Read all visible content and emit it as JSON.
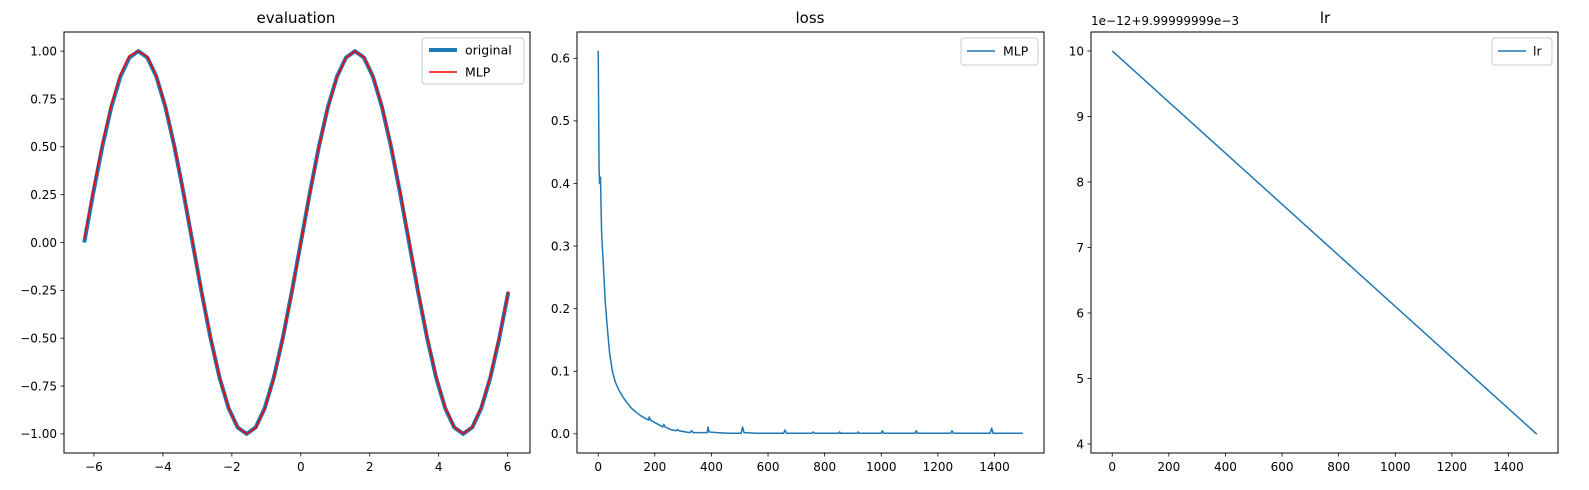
{
  "chart_data": [
    {
      "id": "evaluation",
      "type": "line",
      "title": "evaluation",
      "xlabel": "",
      "ylabel": "",
      "xlim": [
        -6.87,
        6.65
      ],
      "ylim": [
        -1.1,
        1.1
      ],
      "x_ticks": [
        -6,
        -4,
        -2,
        0,
        2,
        4,
        6
      ],
      "x_tick_labels": [
        "−6",
        "−4",
        "−2",
        "0",
        "2",
        "4",
        "6"
      ],
      "y_ticks": [
        -1.0,
        -0.75,
        -0.5,
        -0.25,
        0.0,
        0.25,
        0.5,
        0.75,
        1.0
      ],
      "y_tick_labels": [
        "−1.00",
        "−0.75",
        "−0.50",
        "−0.25",
        "0.00",
        "0.25",
        "0.50",
        "0.75",
        "1.00"
      ],
      "grid": false,
      "legend": "top-right",
      "x_start": -6.283,
      "x_step": 0.2618,
      "n_points": 48,
      "series": [
        {
          "name": "original",
          "color": "#1f77b4",
          "values": [
            0.0,
            0.259,
            0.5,
            0.707,
            0.866,
            0.966,
            1.0,
            0.966,
            0.866,
            0.707,
            0.5,
            0.259,
            0.0,
            -0.259,
            -0.5,
            -0.707,
            -0.866,
            -0.966,
            -1.0,
            -0.966,
            -0.866,
            -0.707,
            -0.5,
            -0.259,
            0.0,
            0.259,
            0.5,
            0.707,
            0.866,
            0.966,
            1.0,
            0.966,
            0.866,
            0.707,
            0.5,
            0.259,
            0.0,
            -0.259,
            -0.5,
            -0.707,
            -0.866,
            -0.966,
            -1.0,
            -0.966,
            -0.866,
            -0.707,
            -0.5,
            -0.259
          ]
        },
        {
          "name": "MLP",
          "color": "#ff0000",
          "values": [
            0.02,
            0.275,
            0.515,
            0.722,
            0.878,
            0.976,
            1.0,
            0.97,
            0.87,
            0.712,
            0.502,
            0.262,
            0.005,
            -0.255,
            -0.496,
            -0.704,
            -0.865,
            -0.966,
            -1.0,
            -0.968,
            -0.87,
            -0.71,
            -0.503,
            -0.262,
            -0.003,
            0.257,
            0.498,
            0.705,
            0.864,
            0.965,
            1.0,
            0.968,
            0.871,
            0.713,
            0.506,
            0.268,
            0.012,
            -0.25,
            -0.492,
            -0.7,
            -0.862,
            -0.964,
            -0.998,
            -0.965,
            -0.862,
            -0.7,
            -0.49,
            -0.255
          ]
        }
      ]
    },
    {
      "id": "loss",
      "type": "line",
      "title": "loss",
      "xlabel": "",
      "ylabel": "",
      "xlim": [
        -75,
        1575
      ],
      "ylim": [
        -0.0306,
        0.642
      ],
      "x_ticks": [
        0,
        200,
        400,
        600,
        800,
        1000,
        1200,
        1400
      ],
      "x_tick_labels": [
        "0",
        "200",
        "400",
        "600",
        "800",
        "1000",
        "1200",
        "1400"
      ],
      "y_ticks": [
        0.0,
        0.1,
        0.2,
        0.3,
        0.4,
        0.5,
        0.6
      ],
      "y_tick_labels": [
        "0.0",
        "0.1",
        "0.2",
        "0.3",
        "0.4",
        "0.5",
        "0.6"
      ],
      "grid": false,
      "legend": "top-right",
      "series": [
        {
          "name": "MLP",
          "color": "#1f77b4",
          "points": [
            [
              0,
              0.612
            ],
            [
              3,
              0.42
            ],
            [
              5,
              0.4
            ],
            [
              8,
              0.41
            ],
            [
              12,
              0.32
            ],
            [
              18,
              0.27
            ],
            [
              25,
              0.21
            ],
            [
              32,
              0.17
            ],
            [
              40,
              0.13
            ],
            [
              50,
              0.1
            ],
            [
              60,
              0.083
            ],
            [
              75,
              0.068
            ],
            [
              90,
              0.057
            ],
            [
              105,
              0.048
            ],
            [
              112,
              0.044
            ],
            [
              115,
              0.042
            ],
            [
              120,
              0.04
            ],
            [
              135,
              0.034
            ],
            [
              150,
              0.029
            ],
            [
              165,
              0.025
            ],
            [
              178,
              0.022
            ],
            [
              180,
              0.027
            ],
            [
              185,
              0.022
            ],
            [
              200,
              0.018
            ],
            [
              220,
              0.013
            ],
            [
              228,
              0.011
            ],
            [
              232,
              0.015
            ],
            [
              236,
              0.011
            ],
            [
              255,
              0.007
            ],
            [
              275,
              0.005
            ],
            [
              280,
              0.007
            ],
            [
              285,
              0.005
            ],
            [
              310,
              0.003
            ],
            [
              325,
              0.002
            ],
            [
              330,
              0.005
            ],
            [
              335,
              0.002
            ],
            [
              360,
              0.002
            ],
            [
              385,
              0.002
            ],
            [
              388,
              0.011
            ],
            [
              392,
              0.003
            ],
            [
              420,
              0.002
            ],
            [
              460,
              0.001
            ],
            [
              505,
              0.001
            ],
            [
              510,
              0.011
            ],
            [
              515,
              0.002
            ],
            [
              560,
              0.001
            ],
            [
              620,
              0.001
            ],
            [
              655,
              0.001
            ],
            [
              660,
              0.006
            ],
            [
              665,
              0.001
            ],
            [
              700,
              0.001
            ],
            [
              755,
              0.001
            ],
            [
              760,
              0.003
            ],
            [
              765,
              0.001
            ],
            [
              800,
              0.001
            ],
            [
              850,
              0.001
            ],
            [
              853,
              0.003
            ],
            [
              856,
              0.001
            ],
            [
              900,
              0.001
            ],
            [
              915,
              0.001
            ],
            [
              918,
              0.003
            ],
            [
              921,
              0.001
            ],
            [
              960,
              0.001
            ],
            [
              1000,
              0.001
            ],
            [
              1004,
              0.005
            ],
            [
              1008,
              0.001
            ],
            [
              1060,
              0.001
            ],
            [
              1120,
              0.001
            ],
            [
              1124,
              0.005
            ],
            [
              1128,
              0.001
            ],
            [
              1180,
              0.001
            ],
            [
              1245,
              0.001
            ],
            [
              1250,
              0.005
            ],
            [
              1255,
              0.001
            ],
            [
              1320,
              0.001
            ],
            [
              1385,
              0.001
            ],
            [
              1390,
              0.009
            ],
            [
              1395,
              0.001
            ],
            [
              1450,
              0.001
            ],
            [
              1500,
              0.001
            ]
          ]
        }
      ]
    },
    {
      "id": "lr",
      "type": "line",
      "title": "lr",
      "xlabel": "",
      "ylabel": "",
      "offset_text": "1e−12+9.99999999e−3",
      "xlim": [
        -75,
        1575
      ],
      "ylim": [
        3.862,
        10.29
      ],
      "x_ticks": [
        0,
        200,
        400,
        600,
        800,
        1000,
        1200,
        1400
      ],
      "x_tick_labels": [
        "0",
        "200",
        "400",
        "600",
        "800",
        "1000",
        "1200",
        "1400"
      ],
      "y_ticks": [
        4,
        5,
        6,
        7,
        8,
        9,
        10
      ],
      "y_tick_labels": [
        "4",
        "5",
        "6",
        "7",
        "8",
        "9",
        "10"
      ],
      "grid": false,
      "legend": "top-right",
      "series": [
        {
          "name": "lr",
          "color": "#1f77b4",
          "points": [
            [
              0,
              10.0
            ],
            [
              1500,
              4.15
            ]
          ]
        }
      ]
    }
  ]
}
